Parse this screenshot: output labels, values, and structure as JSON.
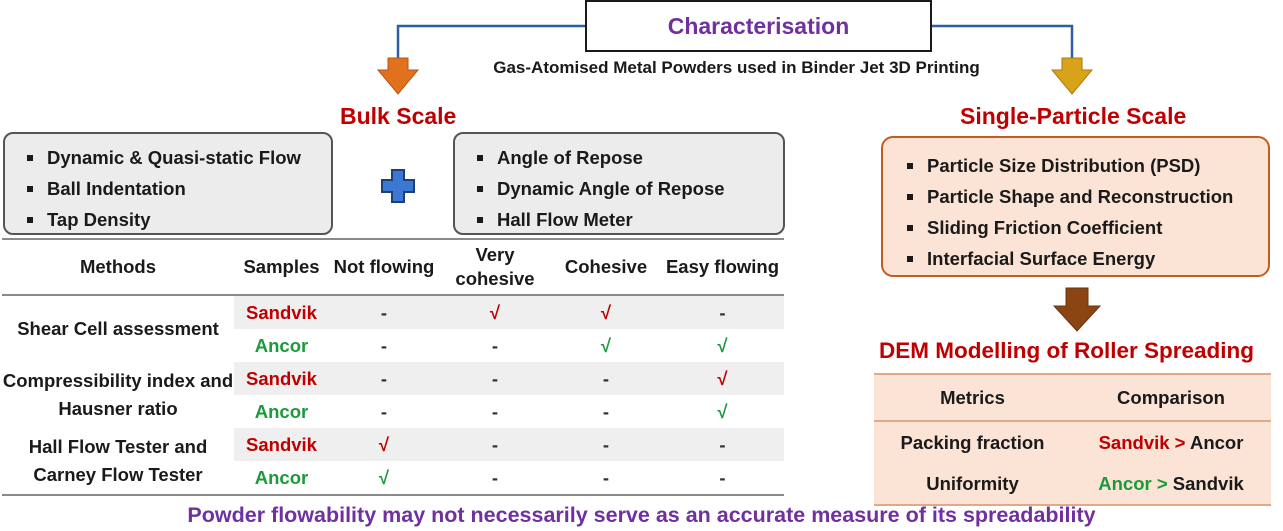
{
  "header": {
    "title": "Characterisation",
    "subtitle": "Gas-Atomised Metal Powders used in Binder Jet 3D Printing"
  },
  "bulk": {
    "heading": "Bulk Scale",
    "left_methods": [
      "Dynamic & Quasi-static Flow",
      "Ball Indentation",
      "Tap Density"
    ],
    "right_methods": [
      "Angle of Repose",
      "Dynamic Angle of Repose",
      "Hall Flow Meter"
    ],
    "plus_symbol": "✚"
  },
  "flow_table": {
    "headers": {
      "methods": "Methods",
      "samples": "Samples",
      "not_flowing": "Not flowing",
      "very_cohesive": "Very cohesive",
      "cohesive": "Cohesive",
      "easy_flowing": "Easy flowing"
    },
    "groups": [
      {
        "method": "Shear Cell assessment",
        "rows": [
          {
            "sample": "Sandvik",
            "not_flowing": "-",
            "very_cohesive": "√",
            "cohesive": "√",
            "easy_flowing": "-"
          },
          {
            "sample": "Ancor",
            "not_flowing": "-",
            "very_cohesive": "-",
            "cohesive": "√",
            "easy_flowing": "√"
          }
        ]
      },
      {
        "method": "Compressibility index and Hausner ratio",
        "rows": [
          {
            "sample": "Sandvik",
            "not_flowing": "-",
            "very_cohesive": "-",
            "cohesive": "-",
            "easy_flowing": "√"
          },
          {
            "sample": "Ancor",
            "not_flowing": "-",
            "very_cohesive": "-",
            "cohesive": "-",
            "easy_flowing": "√"
          }
        ]
      },
      {
        "method": "Hall Flow Tester and Carney Flow Tester",
        "rows": [
          {
            "sample": "Sandvik",
            "not_flowing": "√",
            "very_cohesive": "-",
            "cohesive": "-",
            "easy_flowing": "-"
          },
          {
            "sample": "Ancor",
            "not_flowing": "√",
            "very_cohesive": "-",
            "cohesive": "-",
            "easy_flowing": "-"
          }
        ]
      }
    ]
  },
  "single_particle": {
    "heading": "Single-Particle Scale",
    "methods": [
      "Particle Size Distribution (PSD)",
      "Particle Shape and Reconstruction",
      "Sliding Friction Coefficient",
      "Interfacial Surface Energy"
    ]
  },
  "dem": {
    "heading": "DEM Modelling of Roller Spreading",
    "headers": {
      "metrics": "Metrics",
      "comparison": "Comparison"
    },
    "rows": [
      {
        "metric": "Packing fraction",
        "first": "Sandvik",
        "op": " > ",
        "second": "Ancor"
      },
      {
        "metric": "Uniformity",
        "first": "Ancor",
        "op": " > ",
        "second": "Sandvik"
      }
    ]
  },
  "footer": {
    "text": "Powder flowability may not necessarily serve as an accurate measure of its spreadability"
  },
  "colors": {
    "title_purple": "#7030a0",
    "heading_red": "#c00000",
    "sandvik_red": "#c00000",
    "ancor_green": "#1a9a3a",
    "connector_blue": "#2e5fa0",
    "arrow_orange": "#e2711d",
    "arrow_gold": "#d9a21b",
    "arrow_brown": "#8b4513",
    "plus_blue": "#3a78d4",
    "peach_fill": "#fbe3d6"
  }
}
